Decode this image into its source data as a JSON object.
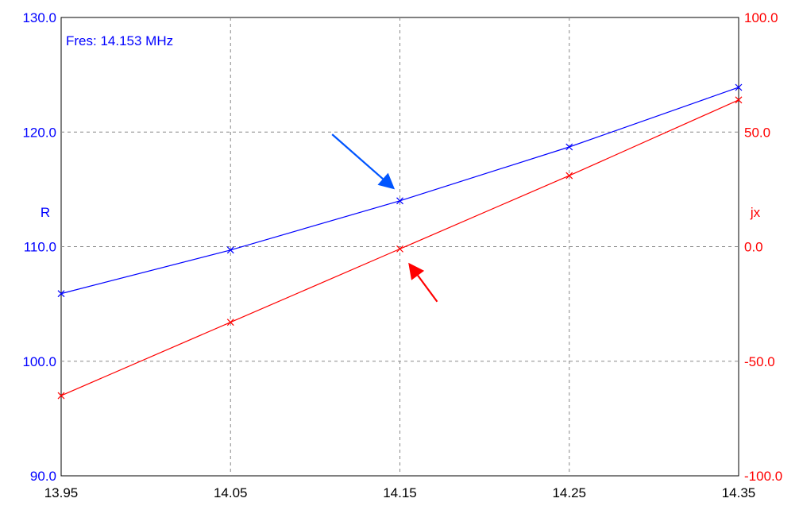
{
  "chart_data": {
    "type": "line",
    "annotation": "Fres: 14.153 MHz",
    "x": [
      13.95,
      14.05,
      14.15,
      14.25,
      14.35
    ],
    "x_tick_labels": [
      "13.95",
      "14.05",
      "14.15",
      "14.25",
      "14.35"
    ],
    "xlim": [
      13.95,
      14.35
    ],
    "y_left": {
      "label": "R",
      "lim": [
        90,
        130
      ],
      "ticks": [
        90,
        100,
        110,
        120,
        130
      ],
      "tick_labels": [
        "90.0",
        "100.0",
        "110.0",
        "120.0",
        "130.0"
      ],
      "color": "#0000ff"
    },
    "y_right": {
      "label": "jx",
      "lim": [
        -100,
        100
      ],
      "ticks": [
        -100,
        -50,
        0,
        50,
        100
      ],
      "tick_labels": [
        "-100.0",
        "-50.0",
        "0.0",
        "50.0",
        "100.0"
      ],
      "color": "#ff0000"
    },
    "series": [
      {
        "axis": "left",
        "color": "#0000ff",
        "values": [
          105.9,
          109.7,
          114.0,
          118.7,
          123.9
        ]
      },
      {
        "axis": "right",
        "color": "#ff0000",
        "values": [
          -65,
          -33,
          -1,
          31,
          64
        ]
      }
    ],
    "grid": true,
    "arrows": [
      {
        "color": "#0055ff",
        "from": [
          14.11,
          119.8
        ],
        "to": [
          14.147,
          115.0
        ]
      },
      {
        "color": "#ff0000",
        "from": [
          14.172,
          -24
        ],
        "to": [
          14.155,
          -7
        ]
      }
    ]
  }
}
